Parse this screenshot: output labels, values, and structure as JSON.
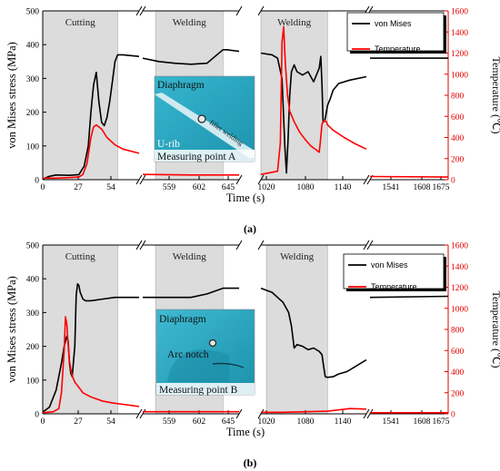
{
  "chart_data": [
    {
      "type": "line",
      "panel_label": "(a)",
      "ylabel": "von Mises stress (MPa)",
      "ylabel_right": "Temperature (℃)",
      "xlabel": "Time (s)",
      "ylim": [
        0,
        500
      ],
      "ylim_right": [
        0,
        1600
      ],
      "y_ticks": [
        "0",
        "100",
        "200",
        "300",
        "400",
        "500"
      ],
      "y_ticks_right": [
        "0",
        "200",
        "400",
        "600",
        "800",
        "1000",
        "1200",
        "1400",
        "1600"
      ],
      "segments": [
        {
          "range": [
            0,
            72
          ],
          "ticks": [
            "0",
            "27",
            "54"
          ]
        },
        {
          "range": [
            540,
            660
          ],
          "ticks": [
            "559",
            "602",
            "645"
          ]
        },
        {
          "range": [
            1020,
            1210
          ],
          "ticks": [
            "1020",
            "1080",
            "1140"
          ]
        },
        {
          "range": [
            1510,
            1690
          ],
          "ticks": [
            "1541",
            "1608",
            "1675"
          ]
        }
      ],
      "regions": [
        {
          "label": "Cutting",
          "range": [
            0,
            56
          ]
        },
        {
          "label": "Welding",
          "range": [
            556,
            640
          ]
        },
        {
          "label": "Welding",
          "range": [
            1020,
            1140
          ]
        }
      ],
      "inset": {
        "top": "Diaphragm",
        "bottom": "U-rib",
        "weld": "fillet welding",
        "caption": "Measuring point A"
      },
      "legend": [
        {
          "label": "von Mises",
          "color": "#000000"
        },
        {
          "label": "Temperature",
          "color": "#ff0000"
        }
      ],
      "series": [
        {
          "name": "von Mises",
          "axis": "left",
          "color": "#000000",
          "x": [
            0,
            5,
            10,
            20,
            27,
            31,
            34,
            36,
            38,
            40,
            42,
            44,
            46,
            48,
            50,
            52,
            54,
            56,
            60,
            72,
            540,
            560,
            580,
            600,
            620,
            630,
            640,
            645,
            660,
            1020,
            1040,
            1050,
            1058,
            1063,
            1066,
            1069,
            1072,
            1075,
            1080,
            1085,
            1095,
            1105,
            1115,
            1125,
            1128,
            1130,
            1132,
            1135,
            1137,
            1140,
            1145,
            1150,
            1160,
            1180,
            1210,
            1510,
            1690
          ],
          "y": [
            2,
            10,
            14,
            13,
            15,
            40,
            100,
            200,
            280,
            318,
            230,
            170,
            160,
            185,
            230,
            290,
            350,
            370,
            370,
            365,
            360,
            350,
            345,
            342,
            345,
            365,
            385,
            385,
            380,
            375,
            370,
            360,
            300,
            100,
            20,
            120,
            250,
            320,
            340,
            320,
            310,
            320,
            290,
            330,
            365,
            280,
            170,
            175,
            190,
            220,
            240,
            265,
            285,
            295,
            305,
            360,
            360
          ]
        },
        {
          "name": "Temperature",
          "axis": "right",
          "color": "#ff0000",
          "x": [
            0,
            10,
            20,
            27,
            30,
            33,
            36,
            38,
            40,
            44,
            48,
            54,
            60,
            72,
            540,
            600,
            660,
            1020,
            1050,
            1055,
            1058,
            1061,
            1064,
            1068,
            1072,
            1080,
            1090,
            1100,
            1110,
            1120,
            1125,
            1127,
            1130,
            1134,
            1138,
            1140,
            1150,
            1170,
            1190,
            1210,
            1510,
            1690
          ],
          "y": [
            15,
            15,
            20,
            25,
            50,
            150,
            400,
            500,
            520,
            480,
            400,
            330,
            290,
            250,
            50,
            45,
            45,
            50,
            80,
            350,
            1300,
            1450,
            1100,
            800,
            650,
            550,
            450,
            380,
            320,
            280,
            260,
            350,
            530,
            560,
            550,
            520,
            470,
            400,
            340,
            290,
            30,
            25
          ]
        }
      ]
    },
    {
      "type": "line",
      "panel_label": "(b)",
      "ylabel": "von Mises stress (MPa)",
      "ylabel_right": "Temperature (℃)",
      "xlabel": "Time (s)",
      "ylim": [
        0,
        500
      ],
      "ylim_right": [
        0,
        1600
      ],
      "y_ticks": [
        "0",
        "100",
        "200",
        "300",
        "400",
        "500"
      ],
      "y_ticks_right": [
        "0",
        "200",
        "400",
        "600",
        "800",
        "1000",
        "1200",
        "1400",
        "1600"
      ],
      "segments": [
        {
          "range": [
            0,
            72
          ],
          "ticks": [
            "0",
            "27",
            "54"
          ]
        },
        {
          "range": [
            540,
            660
          ],
          "ticks": [
            "559",
            "602",
            "645"
          ]
        },
        {
          "range": [
            1020,
            1210
          ],
          "ticks": [
            "1020",
            "1080",
            "1140"
          ]
        },
        {
          "range": [
            1510,
            1690
          ],
          "ticks": [
            "1541",
            "1608",
            "1675"
          ]
        }
      ],
      "regions": [
        {
          "label": "Cutting",
          "range": [
            0,
            56
          ]
        },
        {
          "label": "Welding",
          "range": [
            556,
            640
          ]
        },
        {
          "label": "Welding",
          "range": [
            1030,
            1140
          ]
        }
      ],
      "inset": {
        "top": "Diaphragm",
        "middle": "Arc notch",
        "caption": "Measuring point B"
      },
      "legend": [
        {
          "label": "von Mises",
          "color": "#000000"
        },
        {
          "label": "Temperature",
          "color": "#ff0000"
        }
      ],
      "series": [
        {
          "name": "von Mises",
          "axis": "left",
          "color": "#000000",
          "x": [
            0,
            5,
            10,
            14,
            16,
            18,
            19,
            20,
            21,
            22,
            24,
            25,
            26,
            27,
            28,
            30,
            32,
            36,
            45,
            54,
            72,
            540,
            560,
            600,
            620,
            640,
            660,
            1020,
            1040,
            1060,
            1070,
            1075,
            1080,
            1085,
            1095,
            1105,
            1115,
            1125,
            1130,
            1133,
            1136,
            1140,
            1150,
            1160,
            1175,
            1190,
            1210,
            1510,
            1690
          ],
          "y": [
            5,
            20,
            70,
            150,
            200,
            230,
            215,
            150,
            120,
            110,
            200,
            350,
            385,
            380,
            360,
            340,
            335,
            335,
            340,
            345,
            345,
            345,
            345,
            345,
            355,
            372,
            372,
            372,
            360,
            330,
            300,
            260,
            195,
            205,
            200,
            190,
            195,
            185,
            175,
            140,
            110,
            108,
            110,
            118,
            125,
            140,
            160,
            345,
            348
          ]
        },
        {
          "name": "Temperature",
          "axis": "right",
          "color": "#ff0000",
          "x": [
            0,
            8,
            12,
            14,
            16,
            17,
            18,
            19,
            20,
            21,
            22,
            24,
            27,
            30,
            36,
            45,
            54,
            60,
            72,
            540,
            600,
            660,
            1020,
            1060,
            1100,
            1140,
            1180,
            1210,
            1510,
            1690
          ],
          "y": [
            10,
            20,
            50,
            200,
            600,
            920,
            850,
            650,
            500,
            420,
            360,
            300,
            250,
            200,
            160,
            120,
            100,
            90,
            70,
            20,
            20,
            20,
            15,
            15,
            20,
            25,
            50,
            45,
            10,
            10
          ]
        }
      ]
    }
  ]
}
